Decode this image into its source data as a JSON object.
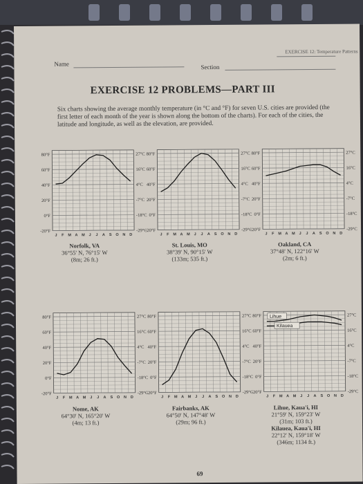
{
  "header": {
    "exercise_label": "EXERCISE 12: Temperature Patterns"
  },
  "fields": {
    "name_label": "Name",
    "section_label": "Section"
  },
  "title": "EXERCISE 12 PROBLEMS—PART III",
  "intro": "Six charts showing the average monthly temperature (in °C and °F) for seven U.S. cities are provided (the first letter of each month of the year is shown along the bottom of the charts). For each of the cities, the latitude and longitude, as well as the elevation, are provided.",
  "axes": {
    "left_ticks": [
      "80°F",
      "60°F",
      "40°F",
      "20°F",
      "0°F",
      "-20°F"
    ],
    "right_ticks": [
      "27°C",
      "16°C",
      "4°C",
      "-7°C",
      "-18°C",
      "-29°C"
    ],
    "month_letters": "J F M A M J J A S O N D"
  },
  "chart_data": [
    {
      "type": "line",
      "city": "Norfolk, VA",
      "latlon": "36°55' N, 76°15' W",
      "elev": "(8m; 26 ft.)",
      "x": [
        "J",
        "F",
        "M",
        "A",
        "M",
        "J",
        "J",
        "A",
        "S",
        "O",
        "N",
        "D"
      ],
      "ylim": [
        -20,
        90
      ],
      "series": [
        {
          "values": [
            41,
            42,
            49,
            58,
            67,
            75,
            79,
            78,
            72,
            61,
            52,
            44
          ]
        }
      ]
    },
    {
      "type": "line",
      "city": "St. Louis, MO",
      "latlon": "38°39' N, 90°15' W",
      "elev": "(133m; 535 ft.)",
      "x": [
        "J",
        "F",
        "M",
        "A",
        "M",
        "J",
        "J",
        "A",
        "S",
        "O",
        "N",
        "D"
      ],
      "ylim": [
        -20,
        90
      ],
      "series": [
        {
          "values": [
            30,
            35,
            44,
            56,
            66,
            75,
            80,
            78,
            70,
            58,
            45,
            34
          ]
        }
      ]
    },
    {
      "type": "line",
      "city": "Oakland, CA",
      "latlon": "37°48' N, 122°16' W",
      "elev": "(2m; 6 ft.)",
      "x": [
        "J",
        "F",
        "M",
        "A",
        "M",
        "J",
        "J",
        "A",
        "S",
        "O",
        "N",
        "D"
      ],
      "ylim": [
        -20,
        90
      ],
      "series": [
        {
          "values": [
            50,
            52,
            54,
            56,
            59,
            62,
            63,
            64,
            64,
            61,
            55,
            50
          ]
        }
      ]
    },
    {
      "type": "line",
      "city": "Nome, AK",
      "latlon": "64°30' N, 165°20' W",
      "elev": "(4m; 13 ft.)",
      "x": [
        "J",
        "F",
        "M",
        "A",
        "M",
        "J",
        "J",
        "A",
        "S",
        "O",
        "N",
        "D"
      ],
      "ylim": [
        -20,
        90
      ],
      "series": [
        {
          "values": [
            6,
            4,
            7,
            18,
            35,
            46,
            51,
            50,
            41,
            26,
            15,
            5
          ]
        }
      ]
    },
    {
      "type": "line",
      "city": "Fairbanks, AK",
      "latlon": "64°50' N, 147°48' W",
      "elev": "(29m; 96 ft.)",
      "x": [
        "J",
        "F",
        "M",
        "A",
        "M",
        "J",
        "J",
        "A",
        "S",
        "O",
        "N",
        "D"
      ],
      "ylim": [
        -20,
        90
      ],
      "series": [
        {
          "values": [
            -10,
            -4,
            10,
            32,
            50,
            61,
            63,
            57,
            45,
            25,
            3,
            -7
          ]
        }
      ]
    },
    {
      "type": "line",
      "city": "Lihue, Kaua'i, HI",
      "latlon": "21°59' N, 159°23' W",
      "elev": "(31m; 103 ft.)",
      "city2": "Kilauea, Kaua'i, HI",
      "latlon2": "22°12' N, 159°18' W",
      "elev2": "(346m; 1134 ft.)",
      "x": [
        "J",
        "F",
        "M",
        "A",
        "M",
        "J",
        "J",
        "A",
        "S",
        "O",
        "N",
        "D"
      ],
      "ylim": [
        -20,
        90
      ],
      "series": [
        {
          "name": "Lihue",
          "values": [
            72,
            72,
            73,
            74,
            76,
            78,
            79,
            80,
            79,
            78,
            76,
            73
          ]
        },
        {
          "name": "Kilauea",
          "values": [
            66,
            66,
            66,
            67,
            68,
            70,
            71,
            71,
            71,
            70,
            69,
            67
          ]
        }
      ]
    }
  ],
  "page_number": "69"
}
